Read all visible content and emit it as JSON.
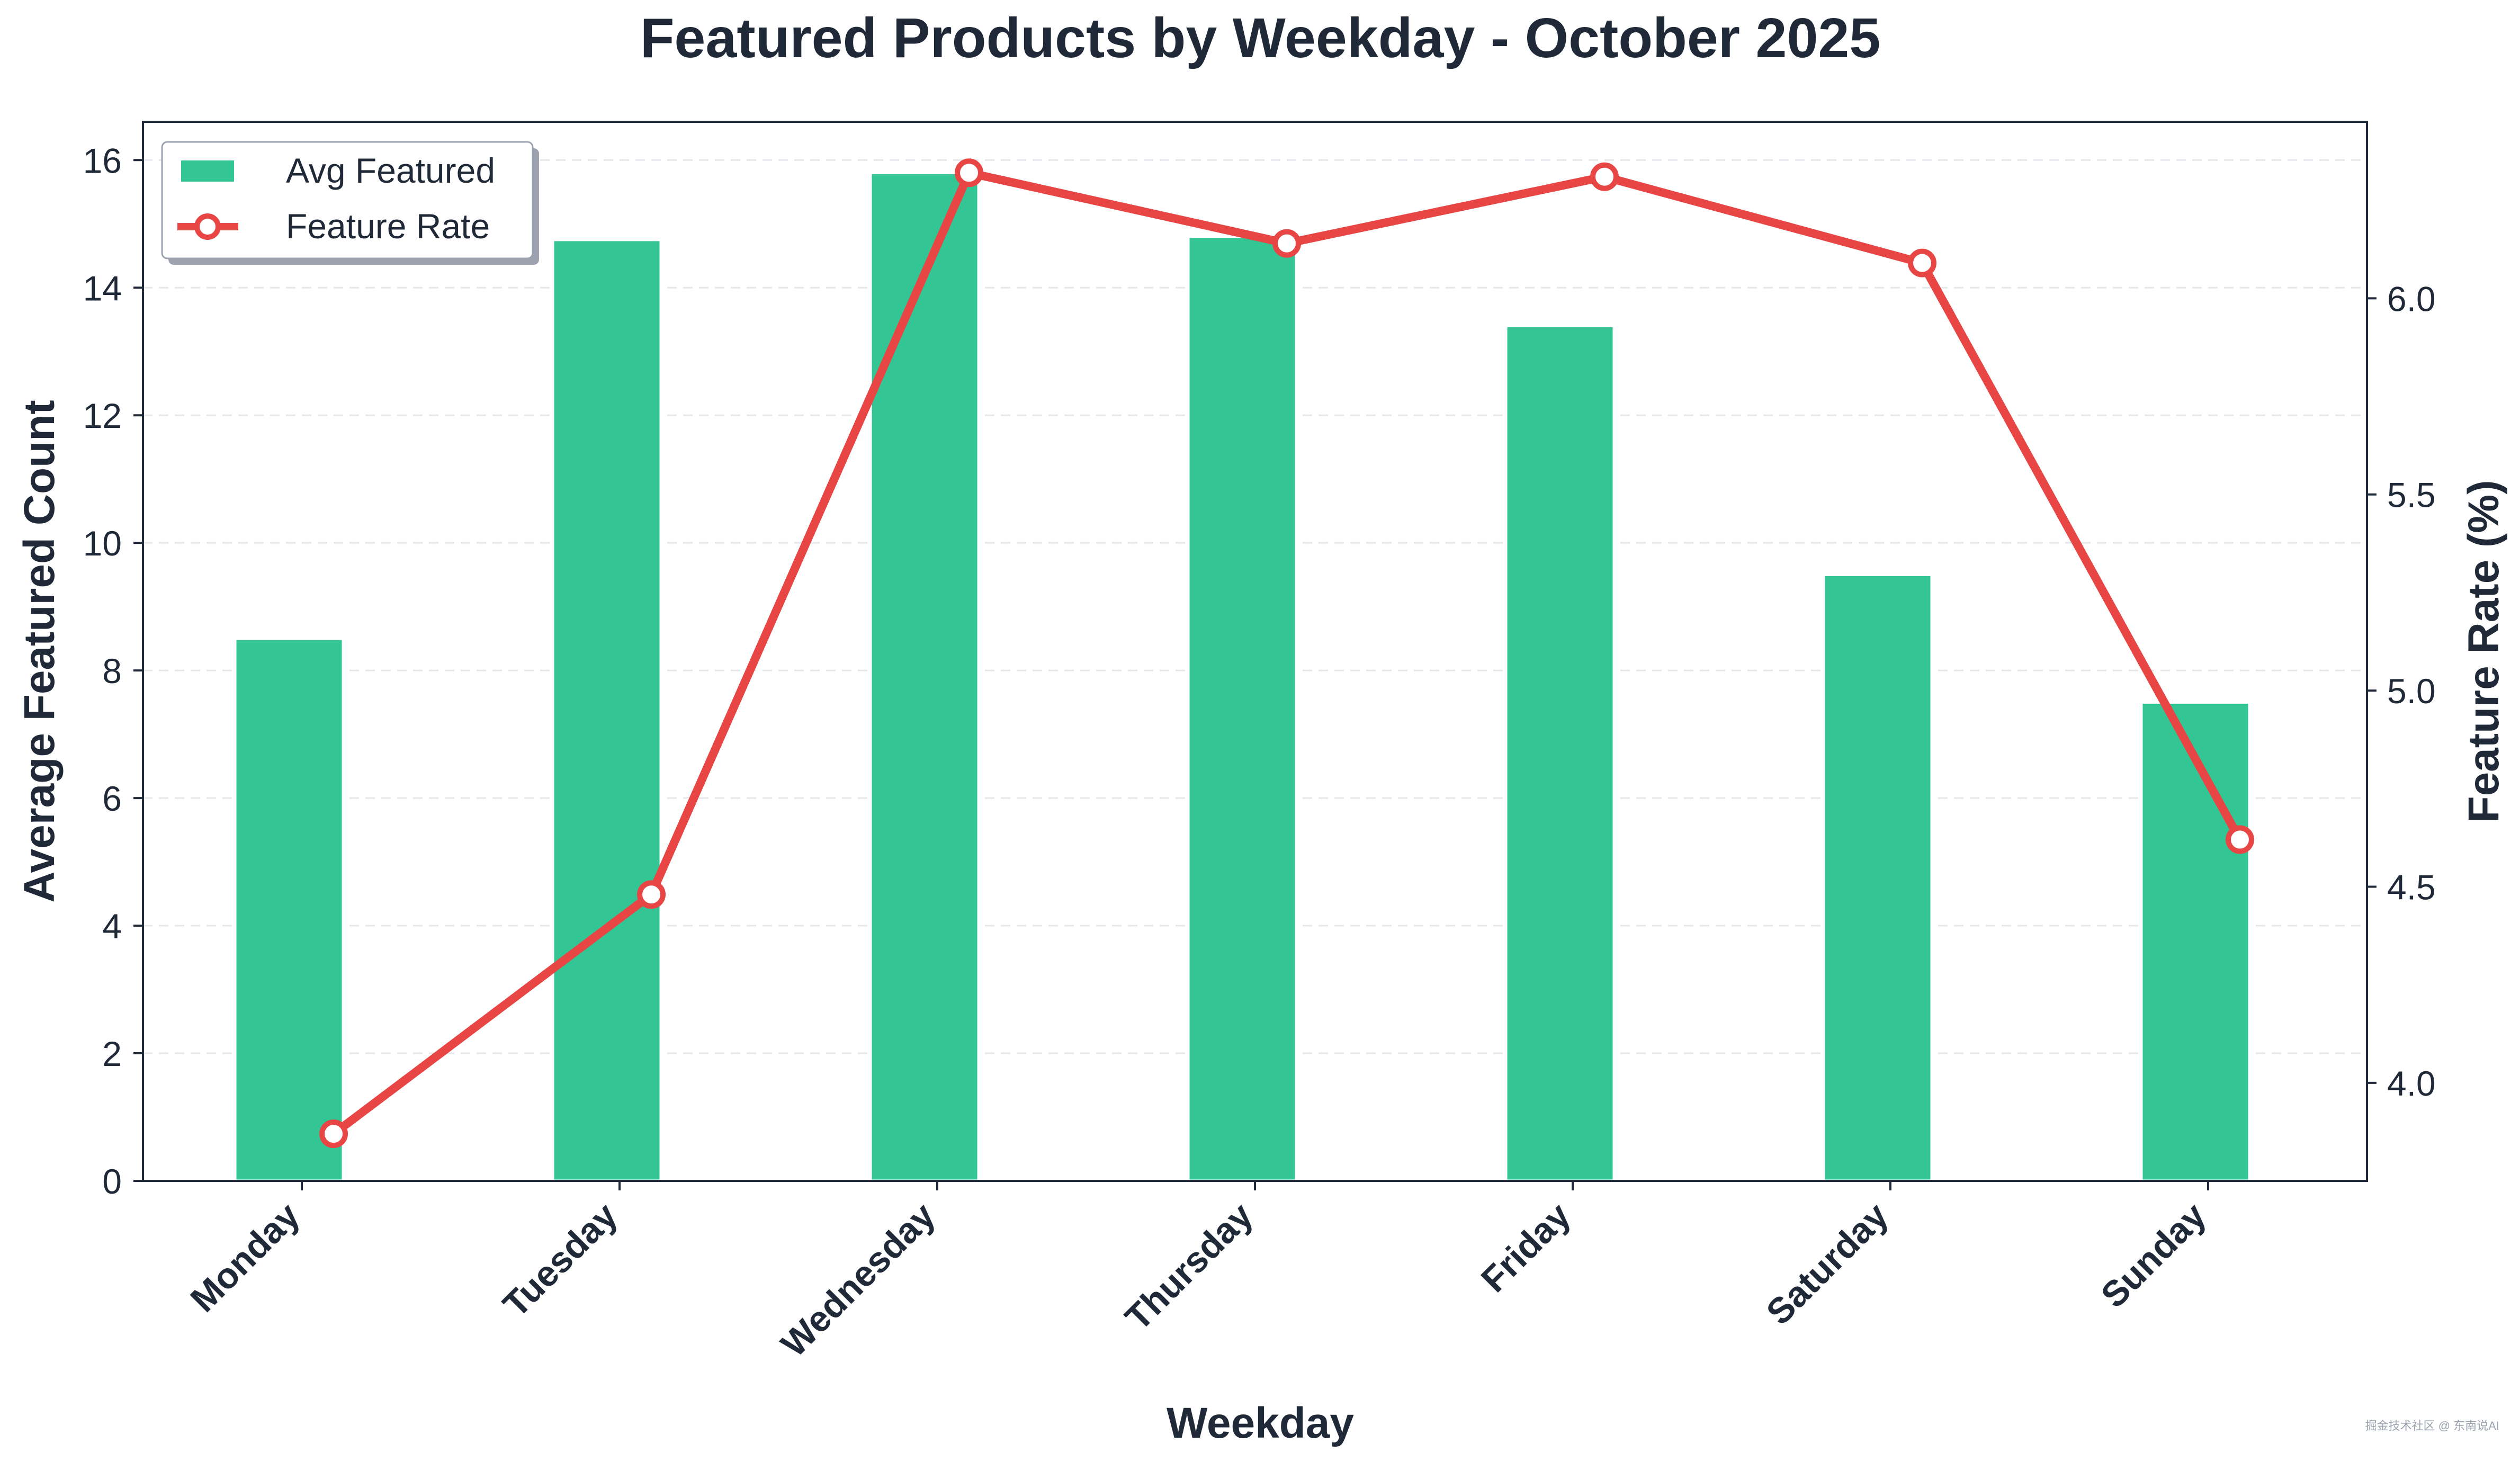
{
  "colors": {
    "bar": "#34c594",
    "line": "#e84545",
    "text": "#1f2937",
    "grid": "#e5e7eb"
  },
  "chart_data": {
    "type": "bar",
    "title": "Featured Products by Weekday - October 2025",
    "xlabel": "Weekday",
    "ylabel": "Average Featured Count",
    "y2label": "Feature Rate (%)",
    "categories": [
      "Monday",
      "Tuesday",
      "Wednesday",
      "Thursday",
      "Friday",
      "Saturday",
      "Sunday"
    ],
    "ylim": [
      0,
      16.6
    ],
    "y2lim": [
      3.75,
      6.45
    ],
    "yticks": [
      "0",
      "2",
      "4",
      "6",
      "8",
      "10",
      "12",
      "14",
      "16"
    ],
    "y2ticks": [
      "4.0",
      "4.5",
      "5.0",
      "5.5",
      "6.0"
    ],
    "grid": true,
    "legend_position": "top-left",
    "series": [
      {
        "name": "Avg Featured",
        "kind": "bar",
        "axis": "left",
        "values": [
          8.5,
          14.75,
          15.8,
          14.8,
          13.4,
          9.5,
          7.5
        ]
      },
      {
        "name": "Feature Rate",
        "kind": "line",
        "axis": "right",
        "values": [
          3.87,
          4.48,
          6.32,
          6.14,
          6.31,
          6.09,
          4.62
        ]
      }
    ]
  },
  "watermark": "掘金技术社区 @ 东南说AI"
}
